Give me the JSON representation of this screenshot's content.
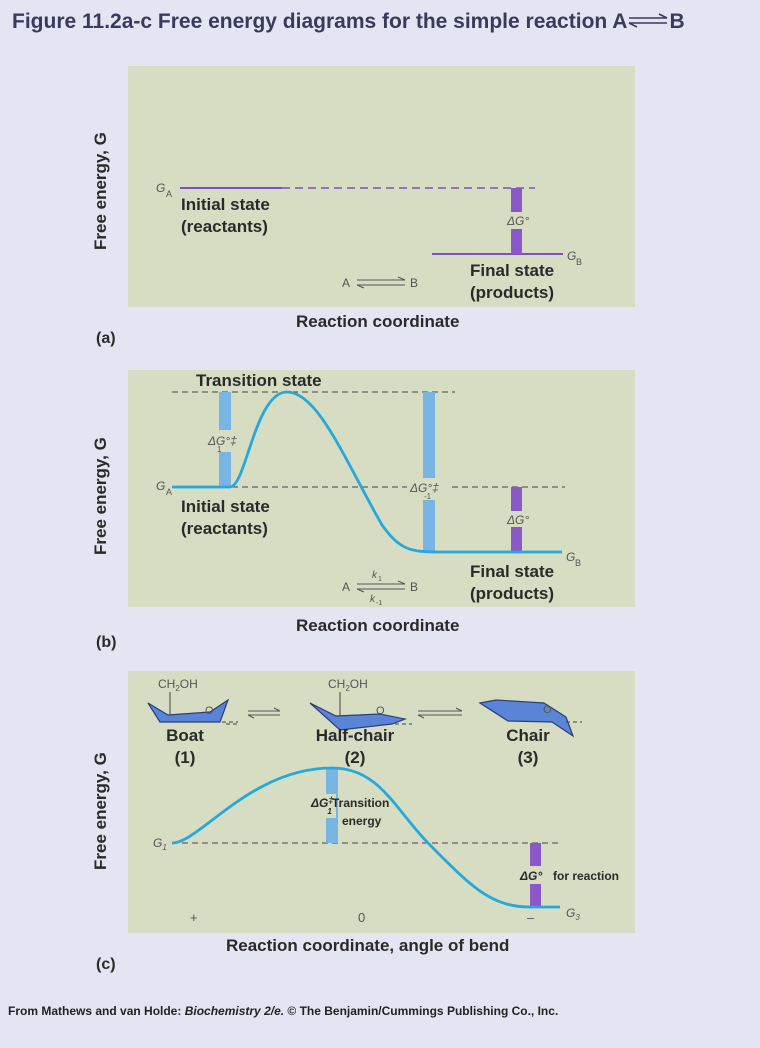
{
  "title": {
    "main": "Figure 11.2a-c Free energy diagrams for the simple reaction A",
    "product": "B"
  },
  "credit": {
    "prefix": "From Mathews and van Holde: ",
    "book": "Biochemistry 2/e.",
    "suffix": " © The Benjamin/Cummings Publishing Co., Inc."
  },
  "colors": {
    "panel": "#d6ddc2",
    "curve": "#26a8dc",
    "deltaG": "#8a58c8",
    "activation": "#78b4e4",
    "state_line": "#8050c0"
  },
  "panel_a": {
    "label": "(a)",
    "y_axis": "Free energy, G",
    "x_axis": "Reaction coordinate",
    "ga": "G",
    "ga_sub": "A",
    "gb": "G",
    "gb_sub": "B",
    "initial_line1": "Initial state",
    "initial_line2": "(reactants)",
    "final_line1": "Final state",
    "final_line2": "(products)",
    "delta_g": "ΔG°",
    "reaction_a": "A",
    "reaction_b": "B"
  },
  "panel_b": {
    "label": "(b)",
    "y_axis": "Free energy, G",
    "x_axis": "Reaction coordinate",
    "transition": "Transition state",
    "ga": "G",
    "ga_sub": "A",
    "gb": "G",
    "gb_sub": "B",
    "initial_line1": "Initial state",
    "initial_line2": "(reactants)",
    "final_line1": "Final state",
    "final_line2": "(products)",
    "dg1": "ΔG°‡",
    "dg1_sub": "1",
    "dgm1": "ΔG°‡",
    "dgm1_sub": "-1",
    "delta_g": "ΔG°",
    "reaction_a": "A",
    "reaction_b": "B",
    "k1": "k",
    "k1_sub": "1",
    "km1": "k",
    "km1_sub": "-1"
  },
  "panel_c": {
    "label": "(c)",
    "y_axis": "Free energy, G",
    "x_axis": "Reaction coordinate, angle of bend",
    "ch2oh": "CH",
    "ch2oh_sub": "2",
    "ch2oh_end": "OH",
    "ring_o": "O",
    "boat": "Boat",
    "boat_num": "(1)",
    "halfchair": "Half-chair",
    "halfchair_num": "(2)",
    "chair": "Chair",
    "chair_num": "(3)",
    "dg": "ΔG",
    "dg_sup": "‡",
    "dg_sub": "1",
    "transition_1": "Transition",
    "transition_2": "energy",
    "reaction_dg": "ΔG°",
    "reaction_text": "for reaction",
    "g1": "G",
    "g1_sub": "1",
    "g3": "G",
    "g3_sub": "3",
    "tick_plus": "+",
    "tick_zero": "0",
    "tick_minus": "–"
  }
}
